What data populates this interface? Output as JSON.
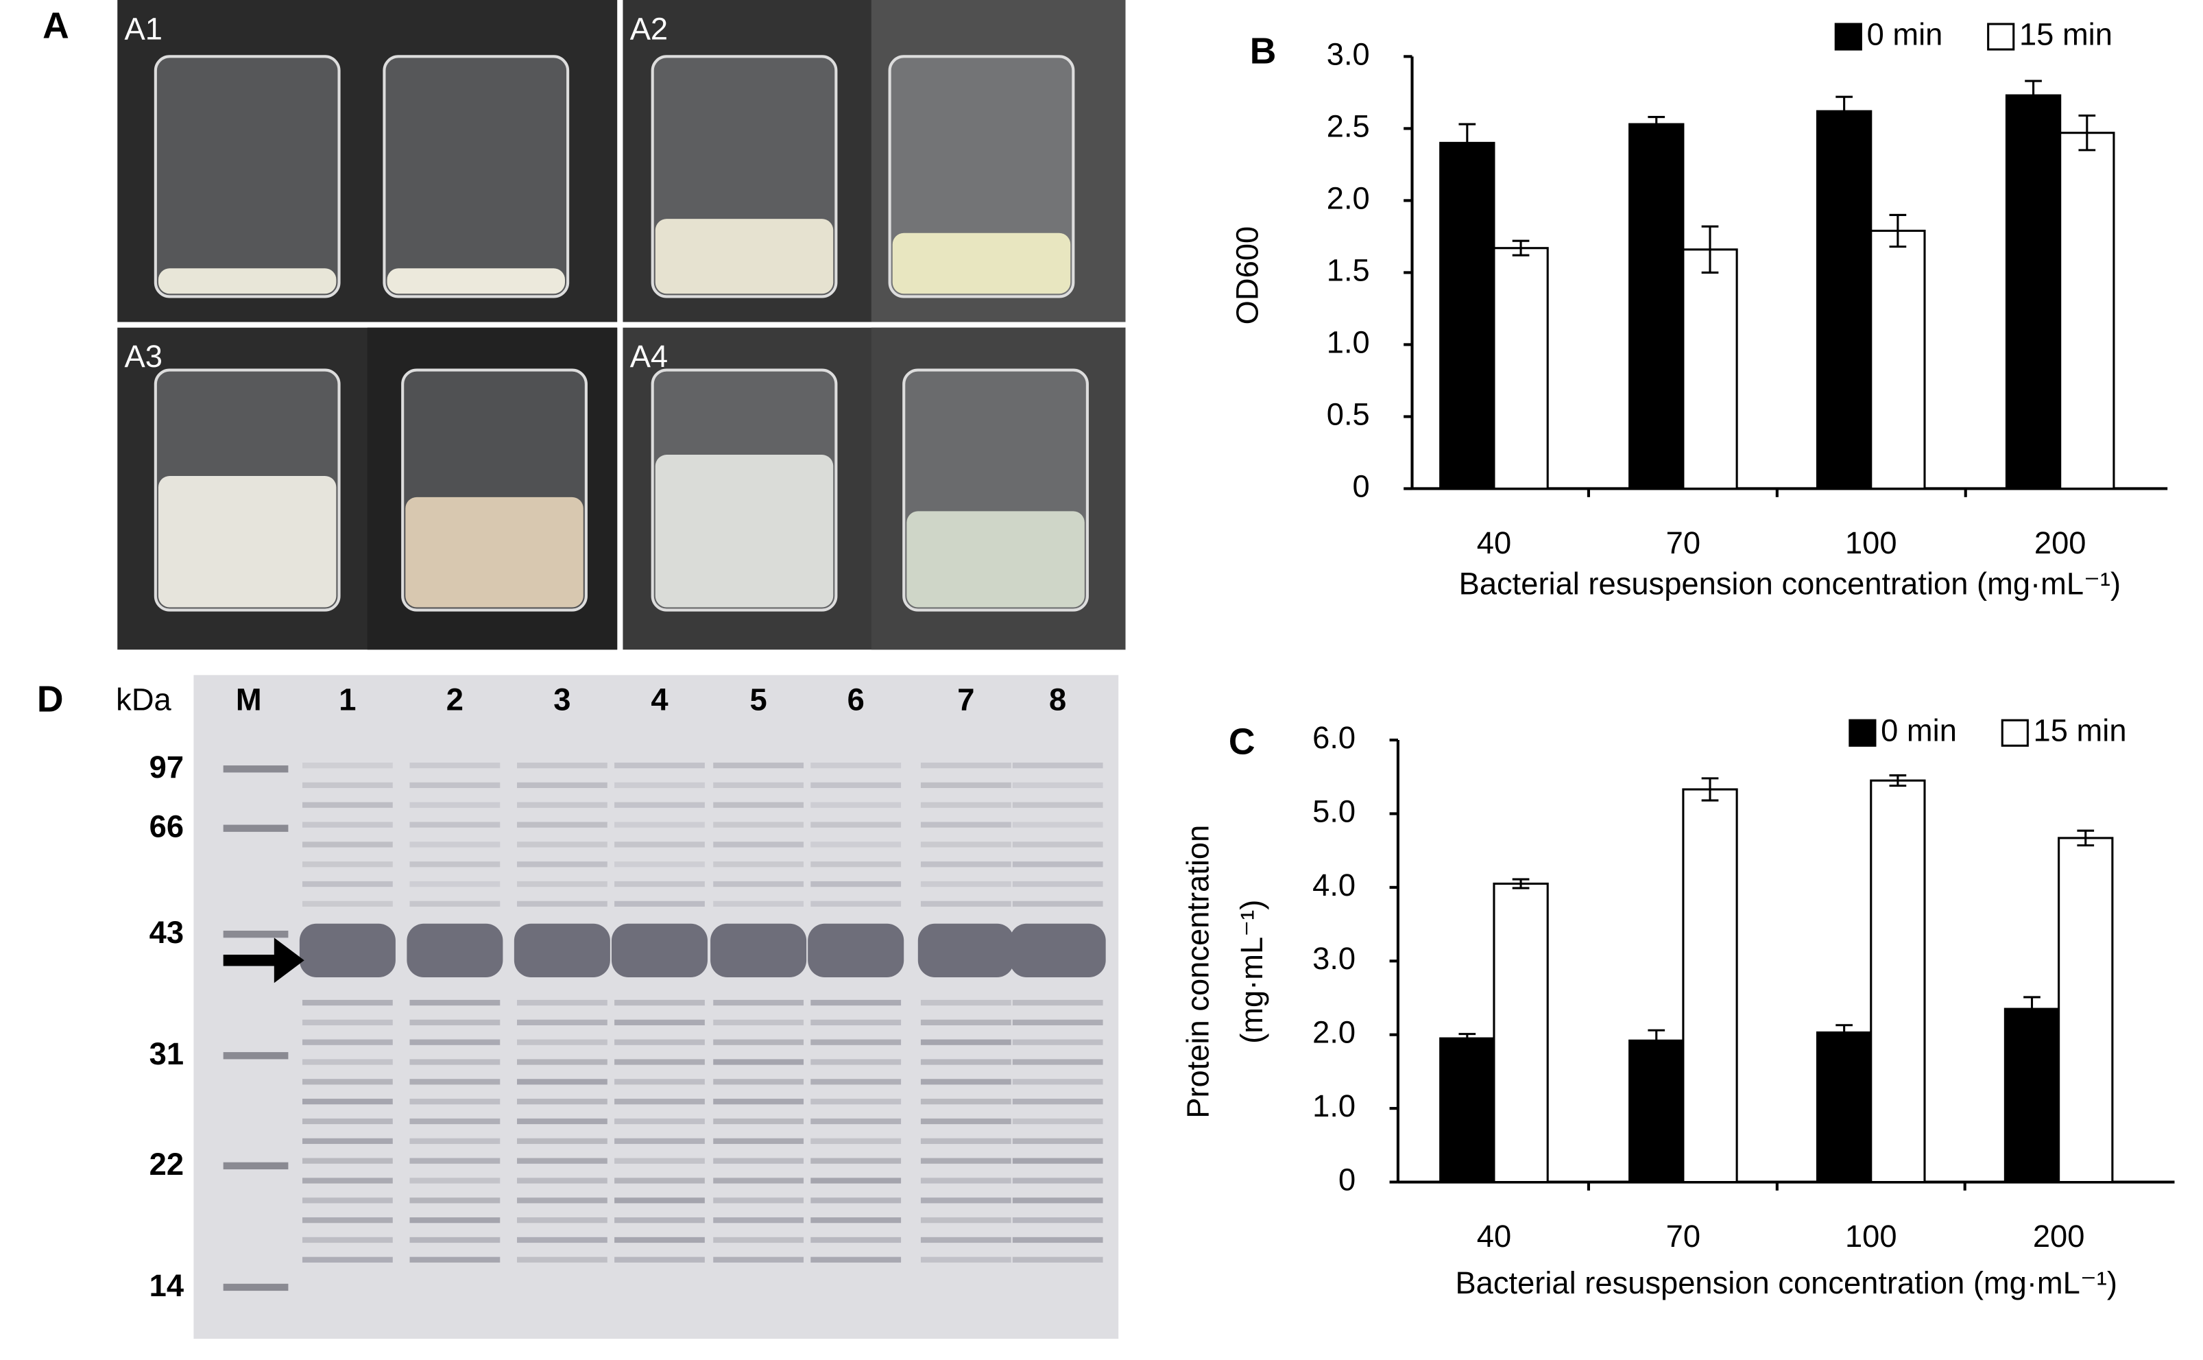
{
  "panel_labels": [
    "A",
    "B",
    "C",
    "D"
  ],
  "photos": {
    "labels": [
      "A1",
      "A2",
      "A3",
      "A4"
    ]
  },
  "gel": {
    "unit": "kDa",
    "lanes": [
      "M",
      "1",
      "2",
      "3",
      "4",
      "5",
      "6",
      "7",
      "8"
    ],
    "markers": [
      97,
      66,
      43,
      31,
      22,
      14
    ]
  },
  "chart_data": [
    {
      "type": "bar",
      "xlabel": "Bacterial resuspension concentration (mg·mL⁻¹)",
      "ylabel": "OD600",
      "categories": [
        "40",
        "70",
        "100",
        "200"
      ],
      "series": [
        {
          "name": "0 min",
          "color": "#000000",
          "values": [
            2.4,
            2.53,
            2.62,
            2.73
          ],
          "errors": [
            0.13,
            0.05,
            0.1,
            0.1
          ]
        },
        {
          "name": "15 min",
          "color": "#ffffff",
          "values": [
            1.67,
            1.66,
            1.79,
            2.47
          ],
          "errors": [
            0.05,
            0.16,
            0.11,
            0.12
          ]
        }
      ],
      "ylim": [
        0,
        3
      ],
      "yticks": [
        0,
        0.5,
        {
          "value": 1,
          "label": "1.0"
        },
        1.5,
        {
          "value": 2,
          "label": "2.0"
        },
        2.5,
        {
          "value": 3,
          "label": "3.0"
        }
      ],
      "grid": false,
      "legend": "top-right"
    },
    {
      "type": "bar",
      "xlabel": "Bacterial resuspension concentration (mg·mL⁻¹)",
      "ylabel": [
        "Protein concentration",
        "(mg·mL⁻¹)"
      ],
      "categories": [
        "40",
        "70",
        "100",
        "200"
      ],
      "series": [
        {
          "name": "0 min",
          "color": "#000000",
          "values": [
            1.95,
            1.92,
            2.03,
            2.35
          ],
          "errors": [
            0.06,
            0.14,
            0.1,
            0.16
          ]
        },
        {
          "name": "15 min",
          "color": "#ffffff",
          "values": [
            4.05,
            5.33,
            5.45,
            4.67
          ],
          "errors": [
            0.06,
            0.15,
            0.07,
            0.1
          ]
        }
      ],
      "ylim": [
        0,
        6
      ],
      "yticks": [
        0,
        {
          "value": 1,
          "label": "1.0"
        },
        {
          "value": 2,
          "label": "2.0"
        },
        {
          "value": 3,
          "label": "3.0"
        },
        {
          "value": 4,
          "label": "4.0"
        },
        {
          "value": 5,
          "label": "5.0"
        },
        {
          "value": 6,
          "label": "6.0"
        }
      ],
      "grid": false,
      "legend": "top-right"
    }
  ]
}
